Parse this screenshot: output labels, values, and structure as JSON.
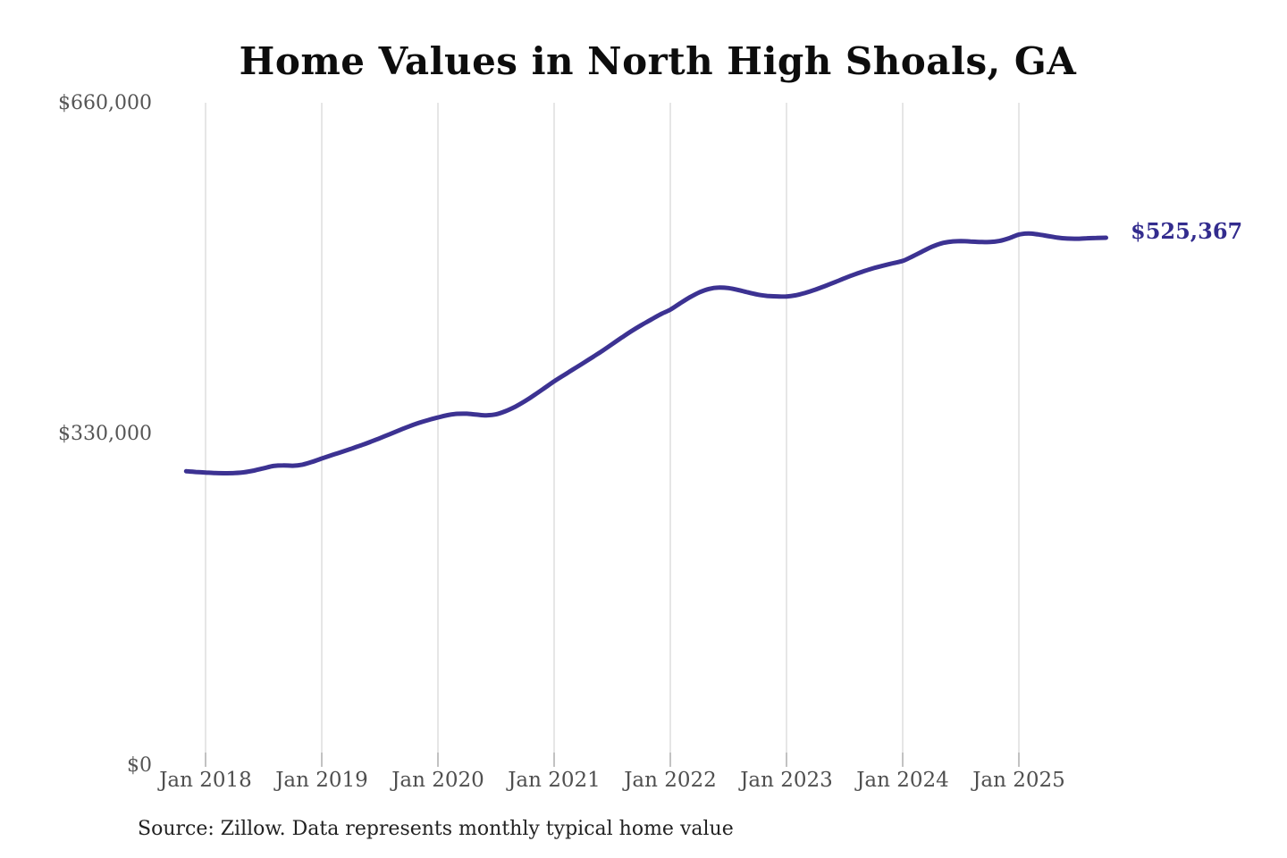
{
  "title": "Home Values in North High Shoals, GA",
  "source_note": "Source: Zillow. Data represents monthly typical home value",
  "end_label": "$525,367",
  "colors": {
    "line": "#3c3292",
    "end_label": "#332c8e",
    "grid": "#cccccc",
    "tick": "#9a9a9a",
    "axis_text": "#555555",
    "title_text": "#0d0d0d",
    "source_text": "#222222",
    "background": "#ffffff"
  },
  "y_axis": {
    "ticks": [
      "$0",
      "$330,000",
      "$660,000"
    ],
    "min": 0,
    "max": 660000
  },
  "x_axis": {
    "ticks": [
      "Jan 2018",
      "Jan 2019",
      "Jan 2020",
      "Jan 2021",
      "Jan 2022",
      "Jan 2023",
      "Jan 2024",
      "Jan 2025"
    ]
  },
  "chart_data": {
    "type": "line",
    "title": "Home Values in North High Shoals, GA",
    "series_name": "Typical home value ($)",
    "ylim": [
      0,
      660000
    ],
    "grid": "vertical-yearly",
    "legend": "none",
    "latest_value": 525367,
    "x": [
      "2017-11",
      "2017-12",
      "2018-01",
      "2018-02",
      "2018-03",
      "2018-04",
      "2018-05",
      "2018-06",
      "2018-07",
      "2018-08",
      "2018-09",
      "2018-10",
      "2018-11",
      "2018-12",
      "2019-01",
      "2019-02",
      "2019-03",
      "2019-04",
      "2019-05",
      "2019-06",
      "2019-07",
      "2019-08",
      "2019-09",
      "2019-10",
      "2019-11",
      "2019-12",
      "2020-01",
      "2020-02",
      "2020-03",
      "2020-04",
      "2020-05",
      "2020-06",
      "2020-07",
      "2020-08",
      "2020-09",
      "2020-10",
      "2020-11",
      "2020-12",
      "2021-01",
      "2021-02",
      "2021-03",
      "2021-04",
      "2021-05",
      "2021-06",
      "2021-07",
      "2021-08",
      "2021-09",
      "2021-10",
      "2021-11",
      "2021-12",
      "2022-01",
      "2022-02",
      "2022-03",
      "2022-04",
      "2022-05",
      "2022-06",
      "2022-07",
      "2022-08",
      "2022-09",
      "2022-10",
      "2022-11",
      "2022-12",
      "2023-01",
      "2023-02",
      "2023-03",
      "2023-04",
      "2023-05",
      "2023-06",
      "2023-07",
      "2023-08",
      "2023-09",
      "2023-10",
      "2023-11",
      "2023-12",
      "2024-01",
      "2024-02",
      "2024-03",
      "2024-04",
      "2024-05",
      "2024-06",
      "2024-07",
      "2024-08",
      "2024-09",
      "2024-10",
      "2024-11",
      "2024-12",
      "2025-01",
      "2025-02",
      "2025-03",
      "2025-04",
      "2025-05",
      "2025-06",
      "2025-07",
      "2025-08",
      "2025-09",
      "2025-10"
    ],
    "values": [
      292400,
      291600,
      291000,
      290500,
      290300,
      290500,
      291300,
      293000,
      295300,
      297500,
      298200,
      297800,
      298900,
      301600,
      305000,
      308200,
      311400,
      314600,
      318000,
      321500,
      325300,
      329200,
      333200,
      337000,
      340400,
      343400,
      346000,
      348300,
      349600,
      349700,
      348800,
      348100,
      349100,
      352300,
      356800,
      362300,
      368600,
      375300,
      382000,
      388100,
      394200,
      400200,
      406300,
      412600,
      419200,
      425800,
      432200,
      438100,
      443500,
      449000,
      453500,
      459800,
      465800,
      470800,
      474200,
      475600,
      475100,
      473200,
      470800,
      468600,
      467300,
      466800,
      466700,
      468000,
      470500,
      473600,
      477200,
      481000,
      484900,
      488600,
      492000,
      495000,
      497500,
      499900,
      502200,
      506600,
      511500,
      516200,
      519700,
      521400,
      521900,
      521600,
      521100,
      521000,
      522100,
      524900,
      528500,
      529500,
      528600,
      527000,
      525400,
      524500,
      524300,
      524800,
      525100,
      525367
    ]
  }
}
